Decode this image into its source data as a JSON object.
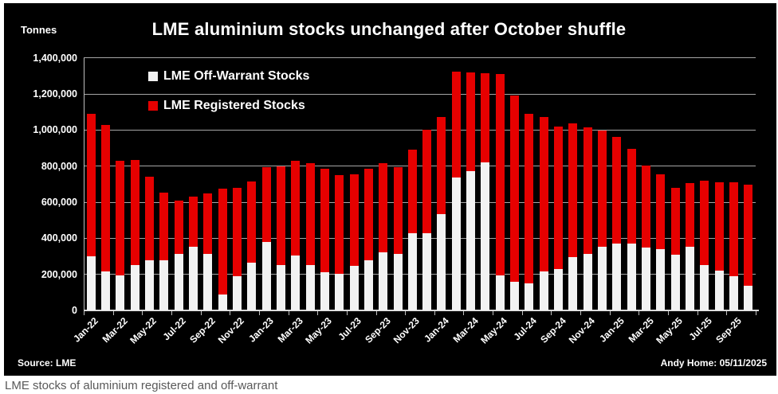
{
  "page": {
    "caption": "LME stocks of aluminium registered and off-warrant"
  },
  "chart": {
    "title": "LME aluminium stocks unchanged after October shuffle",
    "units_label": "Tonnes",
    "source": "Source: LME",
    "credit": "Andy Home: 05/11/2025",
    "colors": {
      "background": "#000000",
      "off_warrant": "#f2f2f2",
      "registered": "#e60000",
      "gridline": "#a6a6a6",
      "axis": "#d9d9d9",
      "text": "#ffffff",
      "caption_text": "#595959"
    },
    "legend": [
      {
        "label": "LME Off-Warrant Stocks",
        "color_key": "off_warrant"
      },
      {
        "label": "LME Registered Stocks",
        "color_key": "registered"
      }
    ]
  },
  "chart_data": {
    "type": "bar",
    "stacked": true,
    "title": "LME aluminium stocks unchanged after October shuffle",
    "xlabel": "",
    "ylabel": "Tonnes",
    "ylim": [
      0,
      1400000
    ],
    "ytick_interval": 200000,
    "ytick_labels": [
      "0",
      "200,000",
      "400,000",
      "600,000",
      "800,000",
      "1,000,000",
      "1,200,000",
      "1,400,000"
    ],
    "grid": true,
    "legend_position": "top-left",
    "categories": [
      "Jan-22",
      "Feb-22",
      "Mar-22",
      "Apr-22",
      "May-22",
      "Jun-22",
      "Jul-22",
      "Aug-22",
      "Sep-22",
      "Oct-22",
      "Nov-22",
      "Dec-22",
      "Jan-23",
      "Feb-23",
      "Mar-23",
      "Apr-23",
      "May-23",
      "Jun-23",
      "Jul-23",
      "Aug-23",
      "Sep-23",
      "Oct-23",
      "Nov-23",
      "Dec-23",
      "Jan-24",
      "Feb-24",
      "Mar-24",
      "Apr-24",
      "May-24",
      "Jun-24",
      "Jul-24",
      "Aug-24",
      "Sep-24",
      "Oct-24",
      "Nov-24",
      "Dec-24",
      "Jan-25",
      "Feb-25",
      "Mar-25",
      "Apr-25",
      "May-25",
      "Jun-25",
      "Jul-25",
      "Aug-25",
      "Sep-25",
      "Oct-25"
    ],
    "xtick_labels_shown": [
      "Jan-22",
      "Mar-22",
      "May-22",
      "Jul-22",
      "Sep-22",
      "Nov-22",
      "Jan-23",
      "Mar-23",
      "May-23",
      "Jul-23",
      "Sep-23",
      "Nov-23",
      "Jan-24",
      "Mar-24",
      "May-24",
      "Jul-24",
      "Sep-24",
      "Nov-24",
      "Jan-25",
      "Mar-25",
      "May-25",
      "Jul-25",
      "Sep-25"
    ],
    "series": [
      {
        "name": "LME Off-Warrant Stocks",
        "color": "#f2f2f2",
        "values": [
          300000,
          215000,
          195000,
          250000,
          280000,
          280000,
          315000,
          355000,
          315000,
          90000,
          190000,
          265000,
          380000,
          250000,
          305000,
          250000,
          210000,
          205000,
          245000,
          280000,
          320000,
          315000,
          430000,
          430000,
          535000,
          735000,
          770000,
          820000,
          195000,
          160000,
          150000,
          215000,
          230000,
          295000,
          315000,
          355000,
          370000,
          370000,
          350000,
          340000,
          310000,
          355000,
          250000,
          220000,
          190000,
          135000
        ]
      },
      {
        "name": "LME Registered Stocks",
        "color": "#e60000",
        "values": [
          790000,
          815000,
          635000,
          585000,
          460000,
          375000,
          295000,
          275000,
          335000,
          585000,
          490000,
          450000,
          415000,
          550000,
          525000,
          565000,
          575000,
          545000,
          510000,
          505000,
          495000,
          480000,
          460000,
          570000,
          535000,
          590000,
          550000,
          495000,
          1115000,
          1030000,
          940000,
          855000,
          790000,
          740000,
          700000,
          640000,
          590000,
          525000,
          455000,
          415000,
          370000,
          350000,
          470000,
          490000,
          520000,
          560000
        ]
      }
    ]
  }
}
